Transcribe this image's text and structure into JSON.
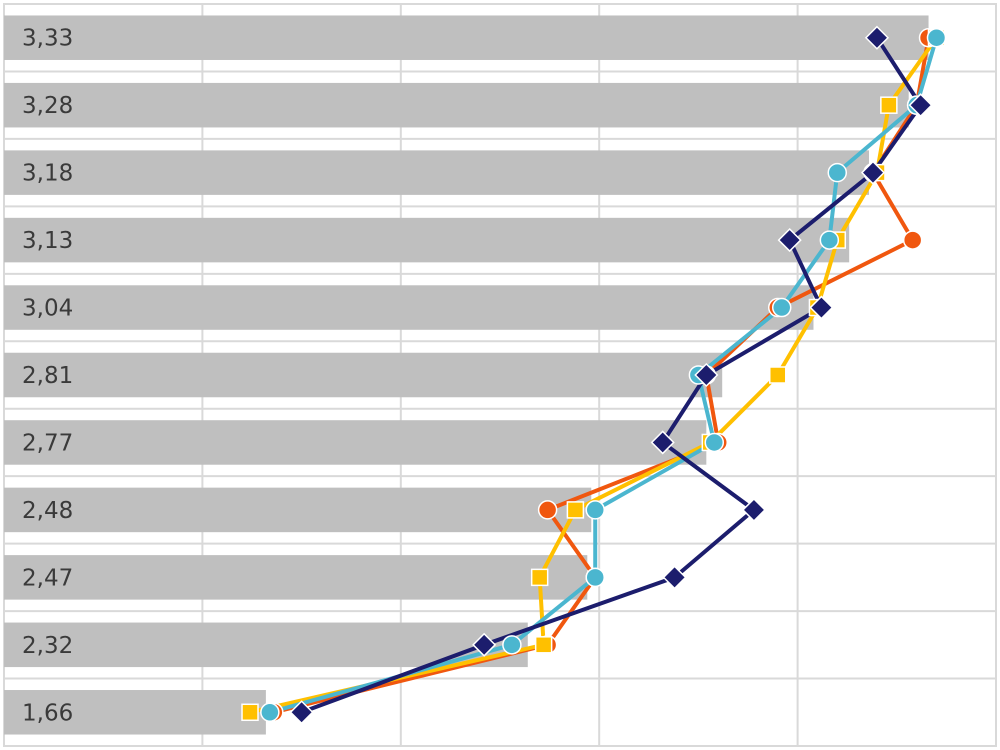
{
  "chart_data": {
    "type": "bar",
    "orientation": "horizontal",
    "title": "",
    "xlabel": "",
    "ylabel": "",
    "xlim": [
      1.0,
      3.5
    ],
    "grid": true,
    "legend": "none",
    "categories": [
      "3,33",
      "3,28",
      "3,18",
      "3,13",
      "3,04",
      "2,81",
      "2,77",
      "2,48",
      "2,47",
      "2,32",
      "1,66"
    ],
    "bar_values": [
      3.33,
      3.28,
      3.18,
      3.13,
      3.04,
      2.81,
      2.77,
      2.48,
      2.47,
      2.32,
      1.66
    ],
    "bar_color": "#bfbfbf",
    "series": [
      {
        "marker": "circle",
        "color": "#f0570f",
        "values": [
          3.33,
          3.3,
          3.19,
          3.29,
          2.95,
          2.77,
          2.8,
          2.37,
          2.49,
          2.37,
          1.68
        ]
      },
      {
        "marker": "square",
        "color": "#ffc000",
        "values": [
          3.35,
          3.23,
          3.2,
          3.1,
          3.05,
          2.95,
          2.78,
          2.44,
          2.35,
          2.36,
          1.62
        ]
      },
      {
        "marker": "circle",
        "color": "#4bb6cf",
        "values": [
          3.35,
          3.3,
          3.1,
          3.08,
          2.96,
          2.75,
          2.79,
          2.49,
          2.49,
          2.28,
          1.67
        ]
      },
      {
        "marker": "diamond",
        "color": "#1c1d6d",
        "values": [
          3.2,
          3.31,
          3.19,
          2.98,
          3.06,
          2.77,
          2.66,
          2.89,
          2.69,
          2.21,
          1.75
        ]
      }
    ]
  }
}
